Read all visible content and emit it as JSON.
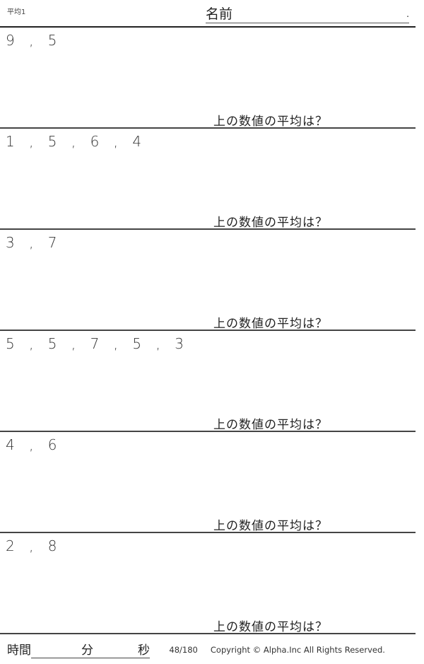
{
  "header": {
    "worksheet_title": "平均1",
    "name_label": "名前",
    "name_end": "."
  },
  "problems": [
    {
      "numbers": "9 , 5",
      "question": "上の数値の平均は？"
    },
    {
      "numbers": "1 , 5 , 6 , 4",
      "question": "上の数値の平均は？"
    },
    {
      "numbers": "3 , 7",
      "question": "上の数値の平均は？"
    },
    {
      "numbers": "5 , 5 , 7 , 5 , 3",
      "question": "上の数値の平均は？"
    },
    {
      "numbers": "4 , 6",
      "question": "上の数値の平均は？"
    },
    {
      "numbers": "2 , 8",
      "question": "上の数値の平均は？"
    }
  ],
  "footer": {
    "time_label": "時間",
    "minutes_label": "分",
    "seconds_label": "秒",
    "page": "48/180",
    "copyright": "Copyright ©  Alpha.Inc All Rights Reserved."
  }
}
